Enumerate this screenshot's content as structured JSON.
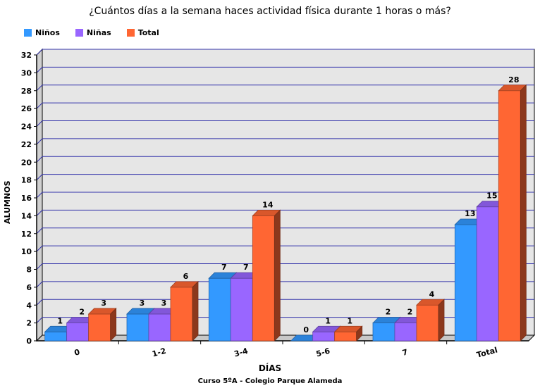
{
  "chart_data": {
    "type": "bar",
    "title": "¿Cuántos días a la semana haces actividad física durante 1 horas o más?",
    "subtitle": "Curso 5ºA - Colegio Parque Alameda",
    "xlabel": "DÍAS",
    "ylabel": "ALUMNOS",
    "categories": [
      "0",
      "1-2",
      "3-4",
      "5-6",
      "7",
      "Total"
    ],
    "series": [
      {
        "name": "Niños",
        "values": [
          1,
          3,
          7,
          0,
          2,
          13
        ],
        "color": "#3399ff"
      },
      {
        "name": "Niñas",
        "values": [
          2,
          3,
          7,
          1,
          2,
          15
        ],
        "color": "#9966ff"
      },
      {
        "name": "Total",
        "values": [
          3,
          6,
          14,
          1,
          4,
          28
        ],
        "color": "#ff6633"
      }
    ],
    "ylim": [
      0,
      32
    ],
    "yticks": [
      0,
      2,
      4,
      6,
      8,
      10,
      12,
      14,
      16,
      18,
      20,
      22,
      24,
      26,
      28,
      30,
      32
    ],
    "grid": true,
    "legend_position": "top-left"
  }
}
